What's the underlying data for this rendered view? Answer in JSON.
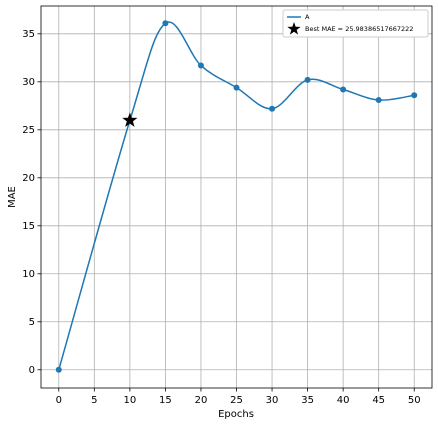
{
  "chart_data": {
    "type": "line",
    "x_label": "Epochs",
    "y_label": "MAE",
    "x": [
      0,
      10,
      15,
      20,
      25,
      30,
      35,
      40,
      45,
      50
    ],
    "series": [
      {
        "name": "A",
        "color": "#1f77b4",
        "values": [
          0,
          25.98386517667222,
          36.1,
          31.7,
          29.4,
          27.2,
          30.2,
          29.2,
          28.1,
          28.6
        ]
      }
    ],
    "best": {
      "name": "Best MAE = 25.98386517667222",
      "x": 10,
      "value": 25.98386517667222,
      "color": "#000000"
    },
    "xlim": [
      -2.5,
      52.5
    ],
    "xticks": [
      0,
      5,
      10,
      15,
      20,
      25,
      30,
      35,
      40,
      45,
      50
    ],
    "ylim": [
      -1.9,
      37.9
    ],
    "yticks": [
      0,
      5,
      10,
      15,
      20,
      25,
      30,
      35
    ],
    "grid": true,
    "legend": "upper right"
  }
}
